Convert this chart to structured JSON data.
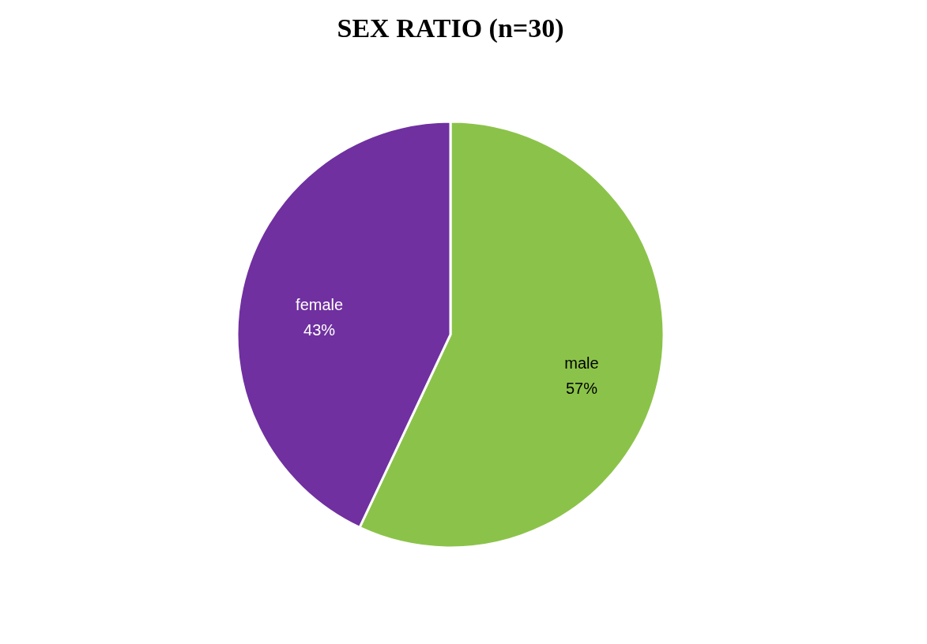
{
  "chart_data": {
    "type": "pie",
    "title": "SEX RATIO (n=30)",
    "categories": [
      "male",
      "female"
    ],
    "values": [
      57,
      43
    ],
    "colors": [
      "#8bc34a",
      "#7030a0"
    ],
    "value_labels": [
      "57%",
      "43%"
    ],
    "legend": false
  }
}
